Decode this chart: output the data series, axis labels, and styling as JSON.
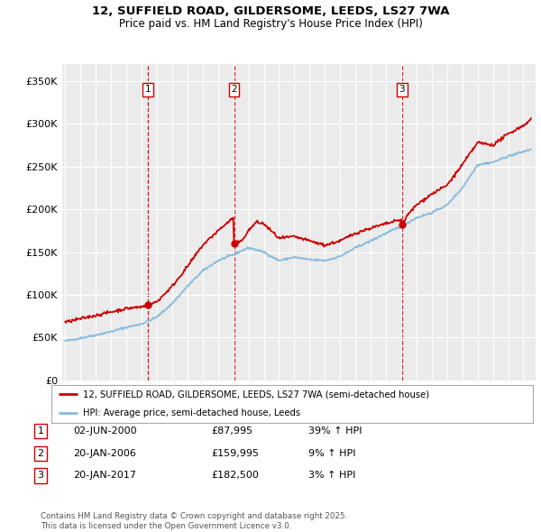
{
  "title": "12, SUFFIELD ROAD, GILDERSOME, LEEDS, LS27 7WA",
  "subtitle": "Price paid vs. HM Land Registry's House Price Index (HPI)",
  "ylabel_ticks": [
    "£0",
    "£50K",
    "£100K",
    "£150K",
    "£200K",
    "£250K",
    "£300K",
    "£350K"
  ],
  "ytick_values": [
    0,
    50000,
    100000,
    150000,
    200000,
    250000,
    300000,
    350000
  ],
  "ylim": [
    0,
    370000
  ],
  "xlim_start": 1994.8,
  "xlim_end": 2025.8,
  "sale_color": "#cc0000",
  "hpi_color": "#88bbdd",
  "sale_dates": [
    2000.42,
    2006.05,
    2017.05
  ],
  "sale_prices": [
    87995,
    159995,
    182500
  ],
  "sale_labels": [
    "1",
    "2",
    "3"
  ],
  "vline_color": "#cc0000",
  "legend_sale_label": "12, SUFFIELD ROAD, GILDERSOME, LEEDS, LS27 7WA (semi-detached house)",
  "legend_hpi_label": "HPI: Average price, semi-detached house, Leeds",
  "table_rows": [
    [
      "1",
      "02-JUN-2000",
      "£87,995",
      "39% ↑ HPI"
    ],
    [
      "2",
      "20-JAN-2006",
      "£159,995",
      "9% ↑ HPI"
    ],
    [
      "3",
      "20-JAN-2017",
      "£182,500",
      "3% ↑ HPI"
    ]
  ],
  "footer": "Contains HM Land Registry data © Crown copyright and database right 2025.\nThis data is licensed under the Open Government Licence v3.0.",
  "background_color": "#ffffff",
  "plot_bg_color": "#ebebeb"
}
